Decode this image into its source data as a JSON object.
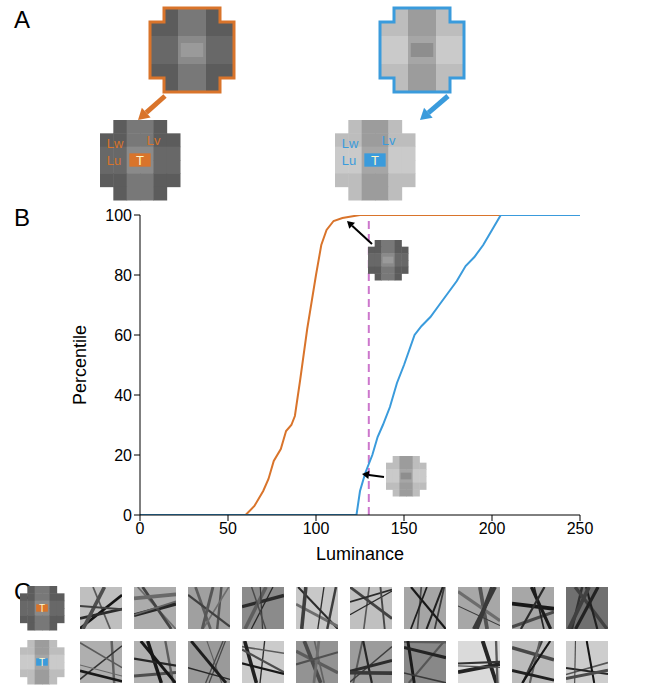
{
  "panel_labels": [
    "A",
    "B",
    "C"
  ],
  "panel_a": {
    "labels": [
      "Lv",
      "Lw",
      "Lu"
    ],
    "target": "T",
    "colors": [
      "#d9742b",
      "#3a9bdc"
    ]
  },
  "chart_data": {
    "type": "line",
    "xlabel": "Luminance",
    "ylabel": "Percentile",
    "xlim": [
      0,
      250
    ],
    "ylim": [
      0,
      100
    ],
    "xticks": [
      0,
      50,
      100,
      150,
      200,
      250
    ],
    "yticks": [
      0,
      20,
      40,
      60,
      80,
      100
    ],
    "grid": false,
    "series": [
      {
        "color": "#d9742b",
        "x": [
          0,
          60,
          65,
          70,
          73,
          76,
          80,
          83,
          86,
          88,
          91,
          95,
          100,
          103,
          106,
          110,
          115,
          125,
          250
        ],
        "values": [
          0,
          0,
          3,
          8,
          12,
          18,
          22,
          28,
          30,
          33,
          45,
          62,
          80,
          90,
          95,
          98,
          99,
          100,
          100
        ]
      },
      {
        "color": "#3a9bdc",
        "x": [
          0,
          123,
          125,
          128,
          132,
          135,
          138,
          142,
          146,
          150,
          153,
          156,
          160,
          165,
          170,
          175,
          180,
          185,
          190,
          195,
          200,
          205,
          250
        ],
        "values": [
          0,
          0,
          8,
          14,
          20,
          26,
          30,
          36,
          44,
          50,
          55,
          60,
          63,
          66,
          70,
          74,
          78,
          83,
          86,
          90,
          95,
          100,
          100
        ]
      }
    ],
    "reference_lines": [
      {
        "x": 130,
        "color": "#cc77cc",
        "line_style": "dashed"
      }
    ]
  },
  "panel_c": {
    "target": "T",
    "colors": [
      "#d9742b",
      "#3a9bdc"
    ]
  }
}
